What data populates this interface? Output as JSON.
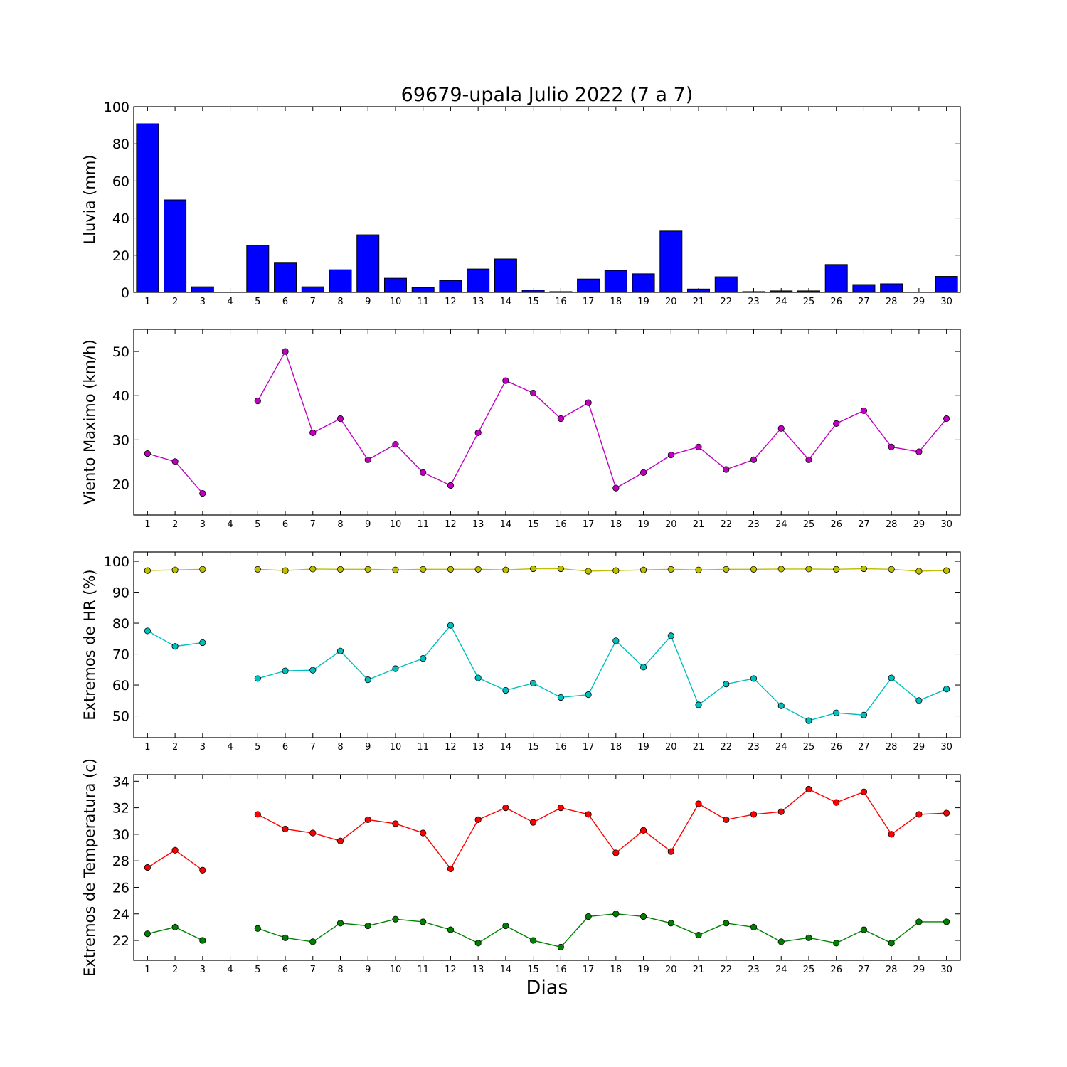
{
  "chart_data": {
    "title": "69679-upala Julio 2022  (7 a 7)",
    "xlabel": "Dias",
    "days": [
      1,
      2,
      3,
      4,
      5,
      6,
      7,
      8,
      9,
      10,
      11,
      12,
      13,
      14,
      15,
      16,
      17,
      18,
      19,
      20,
      21,
      22,
      23,
      24,
      25,
      26,
      27,
      28,
      29,
      30
    ],
    "panels": [
      {
        "type": "bar",
        "ylabel": "Lluvia (mm)",
        "ylim": [
          0,
          100
        ],
        "yticks": [
          0,
          20,
          40,
          60,
          80,
          100
        ],
        "series": [
          {
            "color": "#0000ff",
            "values": [
              90.8,
              49.8,
              3.0,
              null,
              25.4,
              15.8,
              3.0,
              12.2,
              31.0,
              7.6,
              2.6,
              6.4,
              12.6,
              18.0,
              1.2,
              0.4,
              7.2,
              11.8,
              10.0,
              33.0,
              1.8,
              8.4,
              0.4,
              0.8,
              0.8,
              15.0,
              4.2,
              4.6,
              null,
              8.6
            ]
          }
        ]
      },
      {
        "type": "line",
        "ylabel": "Viento Maximo (km/h)",
        "ylim": [
          13,
          55
        ],
        "yticks": [
          20,
          30,
          40,
          50
        ],
        "series": [
          {
            "color": "#bf00bf",
            "values": [
              26.9,
              25.1,
              17.9,
              null,
              38.8,
              50.0,
              31.6,
              34.8,
              25.5,
              29.0,
              22.6,
              19.7,
              31.6,
              43.4,
              40.6,
              34.8,
              38.4,
              19.1,
              22.6,
              26.6,
              28.4,
              23.3,
              25.5,
              32.6,
              25.5,
              33.7,
              36.6,
              28.4,
              27.3,
              34.8
            ]
          }
        ]
      },
      {
        "type": "line",
        "ylabel": "Extremos de HR (%)",
        "ylim": [
          43,
          103
        ],
        "yticks": [
          50,
          60,
          70,
          80,
          90,
          100
        ],
        "series": [
          {
            "color": "#bfbf00",
            "values": [
              97.0,
              97.2,
              97.4,
              null,
              97.4,
              97.0,
              97.5,
              97.4,
              97.4,
              97.2,
              97.4,
              97.4,
              97.4,
              97.2,
              97.6,
              97.6,
              96.8,
              97.0,
              97.2,
              97.4,
              97.2,
              97.4,
              97.4,
              97.5,
              97.5,
              97.4,
              97.6,
              97.4,
              96.8,
              97.0
            ]
          },
          {
            "color": "#00bfbf",
            "values": [
              77.5,
              72.5,
              73.7,
              null,
              62.1,
              64.6,
              64.8,
              71.0,
              61.7,
              65.3,
              68.6,
              79.3,
              62.3,
              58.3,
              60.6,
              56.0,
              56.9,
              74.3,
              65.8,
              75.9,
              53.6,
              60.3,
              62.1,
              53.3,
              48.5,
              51.0,
              50.3,
              62.3,
              55.0,
              58.7
            ]
          }
        ]
      },
      {
        "type": "line",
        "ylabel": "Extremos de Temperatura (c)",
        "ylim": [
          20.5,
          34.5
        ],
        "yticks": [
          22,
          24,
          26,
          28,
          30,
          32,
          34
        ],
        "series": [
          {
            "color": "#ff0000",
            "values": [
              27.5,
              28.8,
              27.3,
              null,
              31.5,
              30.4,
              30.1,
              29.5,
              31.1,
              30.8,
              30.1,
              27.4,
              31.1,
              32.0,
              30.9,
              32.0,
              31.5,
              28.6,
              30.3,
              28.7,
              32.3,
              31.1,
              31.5,
              31.7,
              33.4,
              32.4,
              33.2,
              30.0,
              31.5,
              31.6
            ]
          },
          {
            "color": "#008000",
            "values": [
              22.5,
              23.0,
              22.0,
              null,
              22.9,
              22.2,
              21.9,
              23.3,
              23.1,
              23.6,
              23.4,
              22.8,
              21.8,
              23.1,
              22.0,
              21.5,
              23.8,
              24.0,
              23.8,
              23.3,
              22.4,
              23.3,
              23.0,
              21.9,
              22.2,
              21.8,
              22.8,
              21.8,
              23.4,
              23.4
            ]
          }
        ]
      }
    ]
  }
}
